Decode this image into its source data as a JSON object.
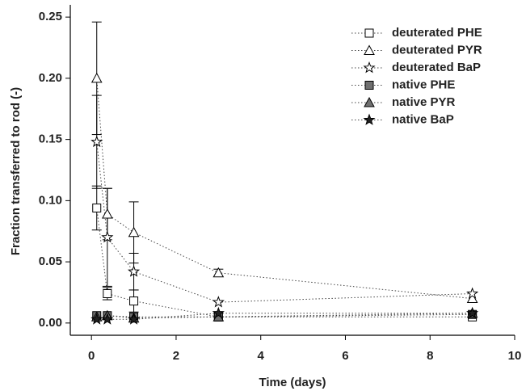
{
  "chart_data": {
    "type": "line",
    "x_label": "Time (days)",
    "y_label": "Fraction transferred to rod (-)",
    "x": [
      0.125,
      0.375,
      1,
      3,
      9
    ],
    "xlim": [
      -0.5,
      10
    ],
    "xticks": [
      0,
      2,
      4,
      6,
      8,
      10
    ],
    "ylim": [
      -0.01,
      0.26
    ],
    "yticks": [
      {
        "value": 0,
        "label": "0.00"
      },
      0.05,
      {
        "value": 0.1,
        "label": "0.10"
      },
      0.15,
      {
        "value": 0.2,
        "label": "0.20"
      },
      0.25
    ],
    "legend": "top-right",
    "series": [
      {
        "name": "deuterated PHE",
        "color": "#ffffff",
        "marker": "square",
        "values": [
          0.094,
          0.024,
          0.018,
          0.005,
          0.005
        ],
        "errors": [
          0.018,
          0.005,
          0.009,
          null,
          null
        ]
      },
      {
        "name": "deuterated PYR",
        "color": "#ffffff",
        "marker": "triangle",
        "values": [
          0.2,
          0.089,
          0.074,
          0.041,
          0.02
        ],
        "errors": [
          0.046,
          0.021,
          0.025,
          0.003,
          null
        ]
      },
      {
        "name": "deuterated BaP",
        "color": "#ffffff",
        "marker": "star",
        "values": [
          0.148,
          0.07,
          0.042,
          0.017,
          0.024
        ],
        "errors": [
          0.038,
          0.04,
          0.015,
          null,
          null
        ]
      },
      {
        "name": "native PHE",
        "color": "#707070",
        "marker": "square",
        "values": [
          0.006,
          0.006,
          0.005,
          0.005,
          0.007
        ],
        "errors": [
          null,
          null,
          null,
          null,
          null
        ]
      },
      {
        "name": "native PYR",
        "color": "#707070",
        "marker": "triangle",
        "values": [
          0.005,
          0.006,
          0.004,
          0.005,
          0.008
        ],
        "errors": [
          null,
          null,
          null,
          null,
          null
        ]
      },
      {
        "name": "native BaP",
        "color": "#222222",
        "marker": "star",
        "values": [
          0.003,
          0.003,
          0.003,
          0.008,
          0.008
        ],
        "errors": [
          null,
          null,
          null,
          null,
          null
        ]
      }
    ]
  }
}
